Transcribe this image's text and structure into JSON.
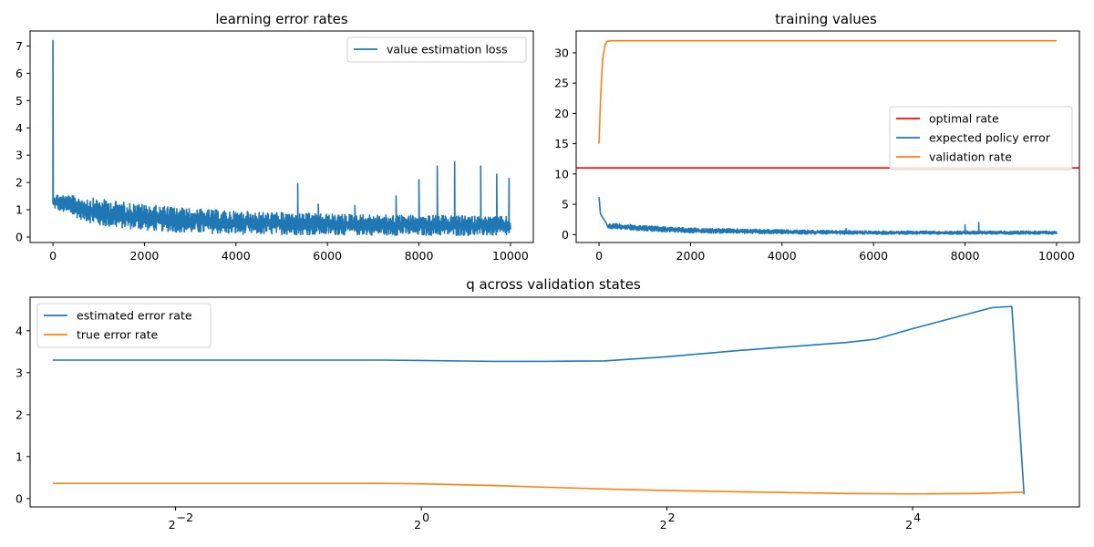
{
  "chart_data": [
    {
      "type": "line",
      "title": "learning error rates",
      "xlabel": "",
      "ylabel": "",
      "xlim": [
        -500,
        10500
      ],
      "ylim": [
        -0.2,
        7.55
      ],
      "xticks": [
        0,
        2000,
        4000,
        6000,
        8000,
        10000
      ],
      "xtick_labels": [
        "0",
        "2000",
        "4000",
        "6000",
        "8000",
        "10000"
      ],
      "yticks": [
        0,
        1,
        2,
        3,
        4,
        5,
        6,
        7
      ],
      "ytick_labels": [
        "0",
        "1",
        "2",
        "3",
        "4",
        "5",
        "6",
        "7"
      ],
      "legend": "top-right",
      "grid": false,
      "series": [
        {
          "name": "value estimation loss",
          "color": "#1f77b4",
          "x": [
            0,
            30,
            60,
            120,
            200,
            400,
            700,
            1000,
            1500,
            2000,
            2500,
            3000,
            3500,
            4000,
            4500,
            5000,
            5350,
            5500,
            5800,
            6000,
            6600,
            7000,
            7500,
            7900,
            8000,
            8300,
            8400,
            8780,
            9000,
            9350,
            9500,
            9700,
            9970,
            10000
          ],
          "y": [
            7.2,
            1.35,
            1.3,
            1.4,
            1.3,
            1.05,
            0.95,
            0.85,
            0.75,
            0.7,
            0.6,
            0.55,
            0.5,
            0.45,
            0.42,
            0.4,
            1.95,
            0.4,
            1.2,
            0.4,
            1.15,
            0.4,
            1.5,
            0.4,
            2.1,
            0.4,
            2.6,
            2.75,
            0.4,
            2.6,
            0.4,
            2.3,
            2.15,
            0.4
          ],
          "noise_band": {
            "x": [
              0,
              1000,
              2000,
              3000,
              4000,
              6000,
              8000,
              10000
            ],
            "low": [
              1.05,
              0.4,
              0.25,
              0.15,
              0.1,
              0.08,
              0.06,
              0.05
            ],
            "high": [
              1.6,
              1.4,
              1.2,
              1.05,
              0.95,
              0.85,
              0.8,
              0.75
            ]
          }
        }
      ]
    },
    {
      "type": "line",
      "title": "training values",
      "xlabel": "",
      "ylabel": "",
      "xlim": [
        -500,
        10500
      ],
      "ylim": [
        -1.3,
        33.6
      ],
      "xticks": [
        0,
        2000,
        4000,
        6000,
        8000,
        10000
      ],
      "xtick_labels": [
        "0",
        "2000",
        "4000",
        "6000",
        "8000",
        "10000"
      ],
      "yticks": [
        0,
        5,
        10,
        15,
        20,
        25,
        30
      ],
      "ytick_labels": [
        "0",
        "5",
        "10",
        "15",
        "20",
        "25",
        "30"
      ],
      "legend": "center-right",
      "grid": false,
      "series": [
        {
          "name": "optimal rate",
          "color": "#ff0000",
          "kind": "hline",
          "y": 11
        },
        {
          "name": "expected policy error",
          "color": "#1f77b4",
          "x": [
            0,
            30,
            80,
            150,
            300,
            600,
            1000,
            2000,
            3000,
            4000,
            5400,
            6000,
            8000,
            8300,
            10000
          ],
          "y": [
            6.2,
            3.5,
            2.8,
            2.0,
            1.7,
            1.5,
            1.2,
            0.8,
            0.5,
            0.4,
            1.0,
            0.3,
            1.6,
            2.0,
            0.3
          ],
          "noise_band": {
            "x": [
              200,
              1000,
              2000,
              4000,
              6000,
              8000,
              10000
            ],
            "low": [
              1.0,
              0.6,
              0.3,
              0.1,
              0.05,
              0.05,
              0.05
            ],
            "high": [
              1.9,
              1.5,
              1.1,
              0.8,
              0.6,
              0.6,
              0.6
            ]
          }
        },
        {
          "name": "validation rate",
          "color": "#ff7f0e",
          "x": [
            0,
            30,
            80,
            130,
            180,
            250,
            400,
            10000
          ],
          "y": [
            15.0,
            22.0,
            29.0,
            31.3,
            31.9,
            32.0,
            32.0,
            32.0
          ]
        }
      ]
    },
    {
      "type": "line",
      "title": "q across validation states",
      "xlabel": "",
      "ylabel": "",
      "xscale": "log2",
      "xlim": [
        0.11,
        41
      ],
      "ylim": [
        -0.2,
        4.8
      ],
      "xticks": [
        0.25,
        1,
        4,
        16
      ],
      "xtick_labels": [
        {
          "base": "2",
          "exp": "−2"
        },
        {
          "base": "2",
          "exp": "0"
        },
        {
          "base": "2",
          "exp": "2"
        },
        {
          "base": "2",
          "exp": "4"
        }
      ],
      "yticks": [
        0,
        1,
        2,
        3,
        4
      ],
      "ytick_labels": [
        "0",
        "1",
        "2",
        "3",
        "4"
      ],
      "legend": "top-left",
      "grid": false,
      "series": [
        {
          "name": "estimated error rate",
          "color": "#1f77b4",
          "x": [
            0.125,
            0.5,
            0.8,
            1.0,
            1.5,
            2.0,
            2.8,
            4.0,
            6.0,
            8.0,
            11.0,
            13.0,
            16.0,
            20.0,
            25.0,
            28.0,
            30.0
          ],
          "y": [
            3.3,
            3.3,
            3.3,
            3.29,
            3.27,
            3.27,
            3.28,
            3.38,
            3.53,
            3.62,
            3.72,
            3.8,
            4.05,
            4.3,
            4.55,
            4.58,
            0.1
          ]
        },
        {
          "name": "true error rate",
          "color": "#ff7f0e",
          "x": [
            0.125,
            0.8,
            1.0,
            1.5,
            2.0,
            3.0,
            4.0,
            6.0,
            8.0,
            11.0,
            16.0,
            23.0,
            30.0
          ],
          "y": [
            0.36,
            0.36,
            0.35,
            0.31,
            0.27,
            0.22,
            0.19,
            0.16,
            0.14,
            0.12,
            0.11,
            0.12,
            0.15
          ]
        }
      ]
    }
  ]
}
